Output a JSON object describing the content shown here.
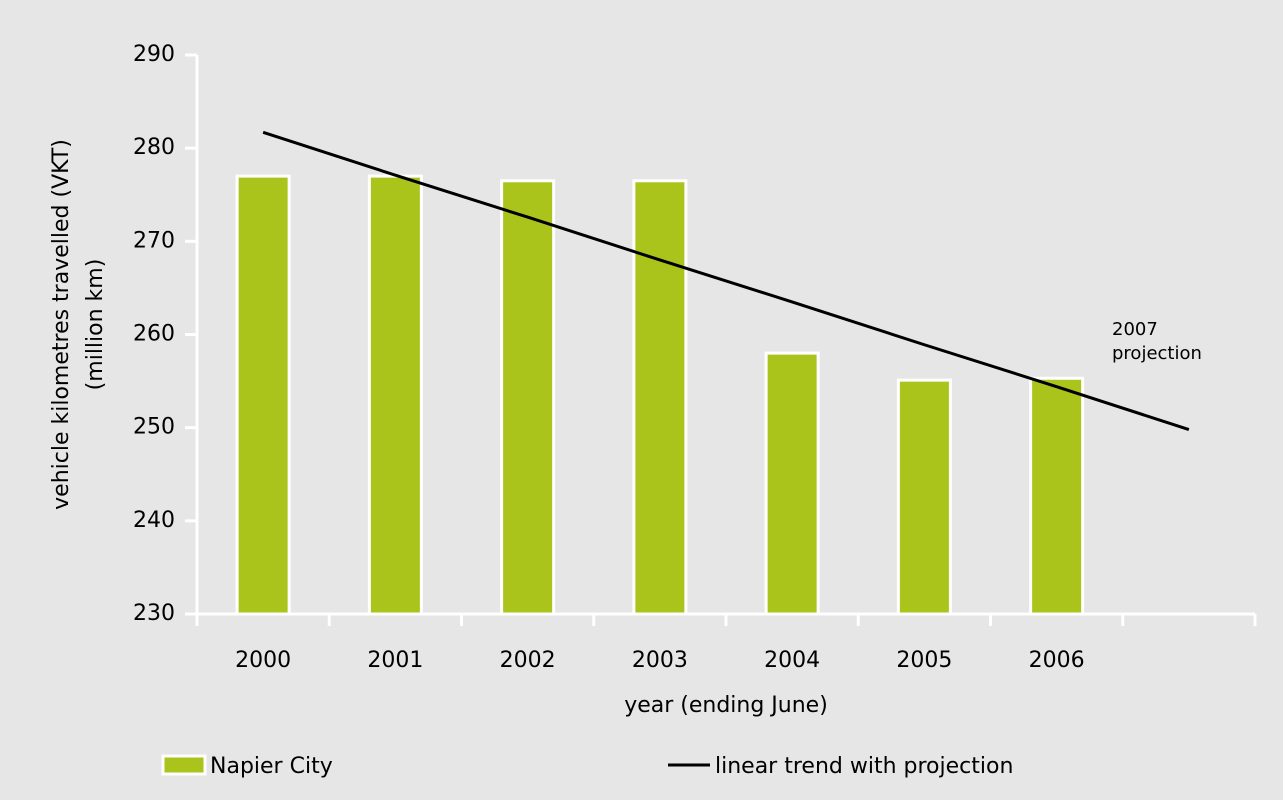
{
  "chart_data": {
    "type": "bar",
    "ylabel": [
      "vehicle kilometres travelled (VKT)",
      "(million km)"
    ],
    "xlabel": "year (ending June)",
    "annotation": "2007 projection",
    "categories": [
      "2000",
      "2001",
      "2002",
      "2003",
      "2004",
      "2005",
      "2006",
      null
    ],
    "series": [
      {
        "name": "Napier City",
        "type": "bar",
        "color": "#aac41b",
        "values": [
          277.0,
          277.0,
          276.5,
          276.5,
          258.0,
          255.1,
          255.3,
          null
        ]
      },
      {
        "name": "linear trend with projection",
        "type": "line",
        "color": "#000000",
        "values": [
          281.7,
          277.1,
          272.6,
          268.0,
          263.5,
          258.9,
          254.4,
          249.8
        ]
      }
    ],
    "ylim": [
      230,
      290
    ],
    "yticks": [
      230,
      240,
      250,
      260,
      270,
      280,
      290
    ],
    "grid": false,
    "legend": "bottom"
  }
}
